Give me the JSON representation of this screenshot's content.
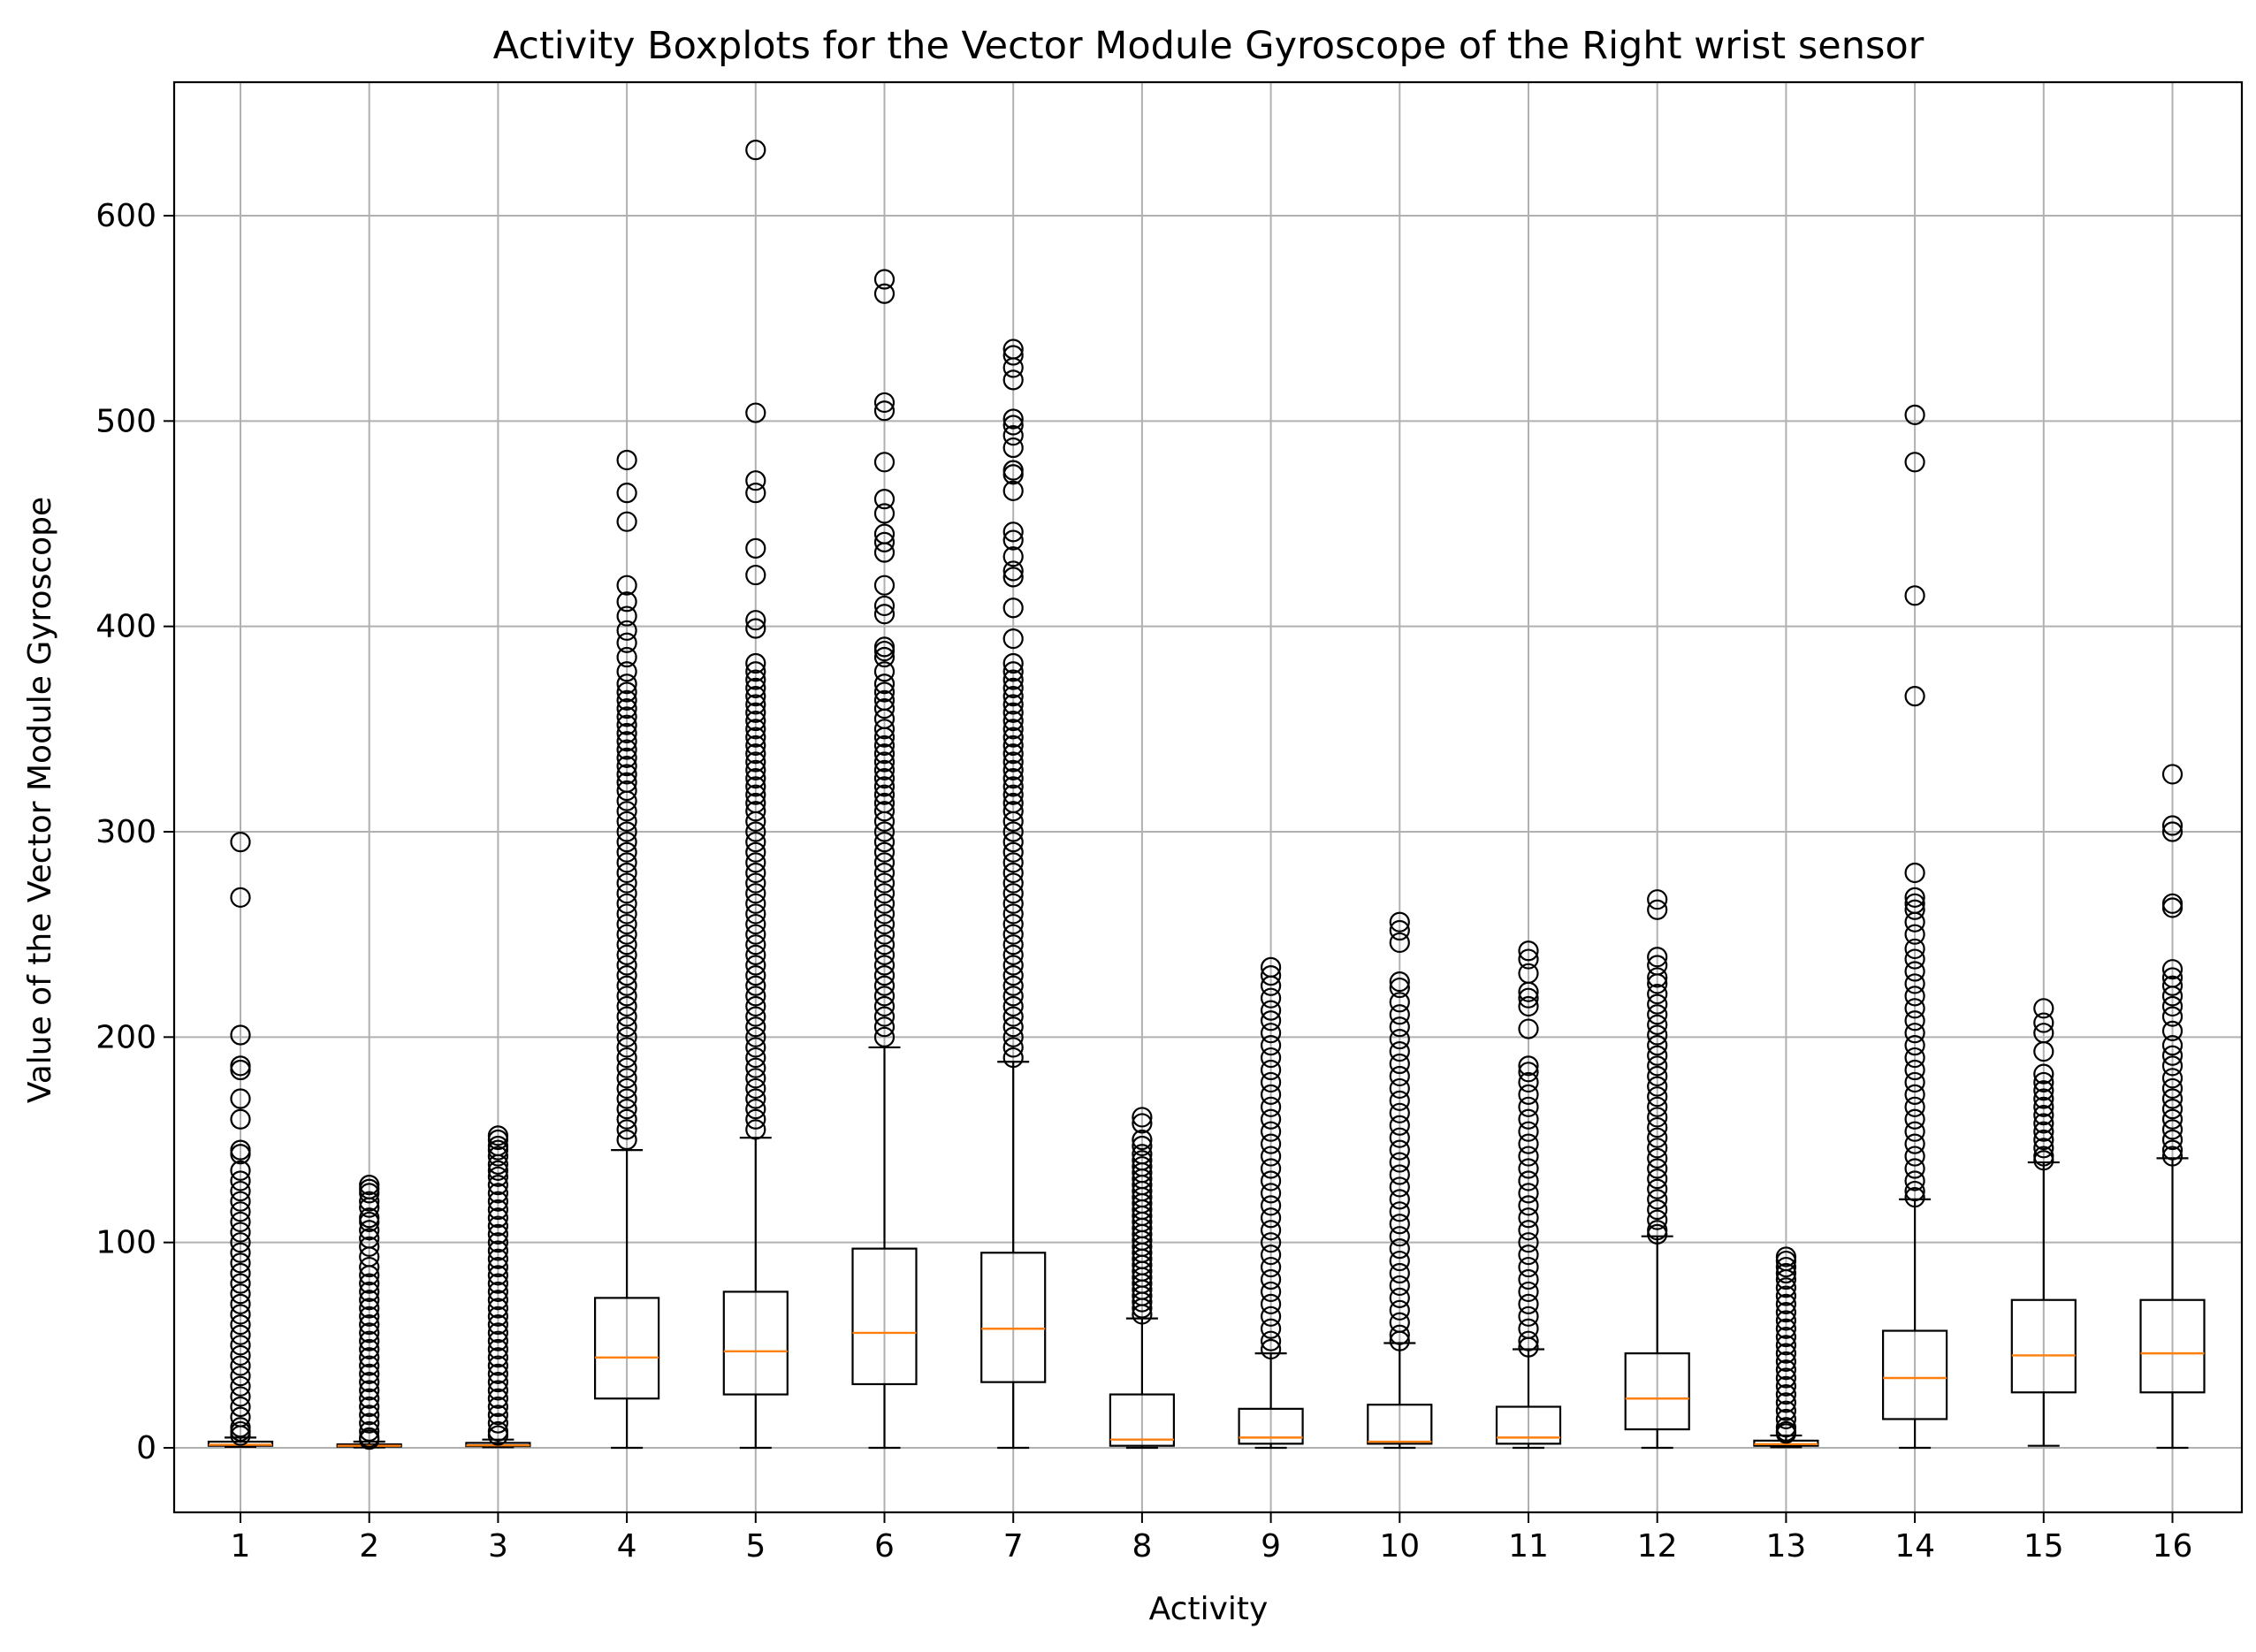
{
  "chart_data": {
    "type": "boxplot",
    "title": "Activity Boxplots for the Vector Module Gyroscope of the Right wrist sensor",
    "xlabel": "Activity",
    "ylabel": "Value of the Vector Module Gyroscope",
    "ylim": [
      -30,
      665
    ],
    "yticks": [
      0,
      100,
      200,
      300,
      400,
      500,
      600
    ],
    "grid": true,
    "colors": {
      "box": "#000000",
      "median": "#ff7f0e",
      "grid": "#b0b0b0",
      "flier": "#000000"
    },
    "categories": [
      "1",
      "2",
      "3",
      "4",
      "5",
      "6",
      "7",
      "8",
      "9",
      "10",
      "11",
      "12",
      "13",
      "14",
      "15",
      "16"
    ],
    "boxes": [
      {
        "label": "1",
        "whislo": 0.5,
        "q1": 1.0,
        "med": 1.5,
        "q3": 3.0,
        "whishi": 5,
        "fliers": [
          295,
          268,
          201,
          186,
          184,
          170,
          160,
          145,
          143,
          135,
          130,
          125,
          120,
          115,
          110,
          105,
          100,
          95,
          90,
          85,
          80,
          75,
          70,
          65,
          60,
          55,
          50,
          45,
          40,
          35,
          30,
          25,
          20,
          15,
          10,
          8,
          6
        ]
      },
      {
        "label": "2",
        "whislo": 0.2,
        "q1": 0.6,
        "med": 1.0,
        "q3": 1.7,
        "whishi": 3,
        "fliers": [
          128,
          126,
          124,
          120,
          117,
          112,
          110,
          106,
          102,
          98,
          93,
          88,
          84,
          80,
          76,
          72,
          68,
          64,
          60,
          56,
          52,
          48,
          44,
          40,
          36,
          32,
          28,
          24,
          20,
          16,
          12,
          8,
          5,
          4
        ]
      },
      {
        "label": "3",
        "whislo": 0.3,
        "q1": 0.8,
        "med": 1.2,
        "q3": 2.4,
        "whishi": 4,
        "fliers": [
          152,
          150,
          147,
          145,
          142,
          138,
          135,
          132,
          128,
          124,
          120,
          116,
          112,
          108,
          104,
          100,
          96,
          92,
          88,
          84,
          80,
          76,
          72,
          68,
          64,
          60,
          56,
          52,
          48,
          44,
          40,
          36,
          32,
          28,
          24,
          20,
          16,
          12,
          8,
          6
        ]
      },
      {
        "label": "4",
        "whislo": 0,
        "q1": 24,
        "med": 44,
        "q3": 73,
        "whishi": 145,
        "fliers": [
          481,
          465,
          451,
          420,
          412,
          405,
          398,
          392,
          385,
          378,
          372,
          368,
          364,
          360,
          356,
          352,
          348,
          344,
          340,
          336,
          332,
          328,
          324,
          320,
          315,
          310,
          305,
          300,
          295,
          290,
          285,
          280,
          275,
          270,
          265,
          260,
          255,
          250,
          245,
          240,
          235,
          230,
          225,
          220,
          215,
          210,
          205,
          200,
          195,
          190,
          185,
          180,
          175,
          170,
          165,
          160,
          155,
          150
        ]
      },
      {
        "label": "5",
        "whislo": 0,
        "q1": 26,
        "med": 47,
        "q3": 76,
        "whishi": 151,
        "fliers": [
          632,
          504,
          471,
          465,
          438,
          425,
          403,
          399,
          382,
          378,
          374,
          370,
          366,
          362,
          358,
          354,
          350,
          346,
          342,
          338,
          334,
          330,
          326,
          322,
          318,
          314,
          310,
          305,
          300,
          295,
          290,
          285,
          280,
          275,
          270,
          265,
          260,
          255,
          250,
          245,
          240,
          235,
          230,
          225,
          220,
          215,
          210,
          205,
          200,
          195,
          190,
          185,
          180,
          175,
          170,
          165,
          160,
          155
        ]
      },
      {
        "label": "6",
        "whislo": 0,
        "q1": 31,
        "med": 56,
        "q3": 97,
        "whishi": 195,
        "fliers": [
          569,
          562,
          509,
          505,
          480,
          462,
          455,
          445,
          441,
          436,
          420,
          410,
          406,
          390,
          388,
          385,
          378,
          372,
          368,
          364,
          360,
          355,
          350,
          346,
          342,
          338,
          334,
          330,
          326,
          322,
          318,
          314,
          310,
          305,
          300,
          295,
          290,
          285,
          280,
          275,
          270,
          265,
          260,
          255,
          250,
          245,
          240,
          235,
          230,
          225,
          220,
          215,
          210,
          205,
          200
        ]
      },
      {
        "label": "7",
        "whislo": 0,
        "q1": 32,
        "med": 58,
        "q3": 95,
        "whishi": 188,
        "fliers": [
          535,
          532,
          526,
          520,
          501,
          498,
          493,
          487,
          476,
          474,
          466,
          446,
          442,
          434,
          427,
          424,
          409,
          394,
          382,
          378,
          374,
          370,
          366,
          362,
          358,
          354,
          350,
          346,
          342,
          338,
          334,
          330,
          326,
          322,
          318,
          314,
          310,
          305,
          300,
          295,
          290,
          285,
          280,
          275,
          270,
          265,
          260,
          255,
          250,
          245,
          240,
          235,
          230,
          225,
          220,
          215,
          210,
          205,
          200,
          195,
          190
        ]
      },
      {
        "label": "8",
        "whislo": 0,
        "q1": 1,
        "med": 4,
        "q3": 26,
        "whishi": 63,
        "fliers": [
          161,
          158,
          150,
          147,
          143,
          140,
          137,
          134,
          131,
          128,
          125,
          122,
          119,
          116,
          113,
          110,
          107,
          104,
          101,
          98,
          95,
          92,
          89,
          86,
          83,
          80,
          77,
          74,
          71,
          68,
          65
        ]
      },
      {
        "label": "9",
        "whislo": 0,
        "q1": 2,
        "med": 5,
        "q3": 19,
        "whishi": 46,
        "fliers": [
          234,
          230,
          225,
          219,
          213,
          208,
          202,
          196,
          190,
          184,
          178,
          172,
          166,
          160,
          154,
          148,
          142,
          136,
          130,
          124,
          118,
          112,
          106,
          100,
          94,
          88,
          82,
          76,
          70,
          64,
          58,
          52,
          48
        ]
      },
      {
        "label": "10",
        "whislo": 0,
        "q1": 2,
        "med": 3,
        "q3": 21,
        "whishi": 51,
        "fliers": [
          256,
          252,
          246,
          227,
          224,
          217,
          211,
          205,
          199,
          193,
          187,
          181,
          175,
          169,
          163,
          157,
          151,
          145,
          139,
          133,
          127,
          121,
          115,
          109,
          103,
          97,
          91,
          85,
          79,
          73,
          67,
          61,
          55,
          52
        ]
      },
      {
        "label": "11",
        "whislo": 0,
        "q1": 2,
        "med": 5,
        "q3": 20,
        "whishi": 48,
        "fliers": [
          242,
          238,
          231,
          222,
          219,
          215,
          204,
          186,
          183,
          178,
          172,
          166,
          160,
          154,
          148,
          142,
          136,
          130,
          124,
          118,
          112,
          106,
          100,
          94,
          88,
          82,
          76,
          70,
          64,
          58,
          52,
          49
        ]
      },
      {
        "label": "12",
        "whislo": 0,
        "q1": 9,
        "med": 24,
        "q3": 46,
        "whishi": 103,
        "fliers": [
          267,
          262,
          239,
          235,
          229,
          226,
          221,
          216,
          211,
          206,
          201,
          196,
          191,
          186,
          181,
          176,
          171,
          166,
          161,
          156,
          151,
          146,
          141,
          136,
          131,
          126,
          121,
          116,
          111,
          106,
          104
        ]
      },
      {
        "label": "13",
        "whislo": 0.3,
        "q1": 1.0,
        "med": 1.8,
        "q3": 3.5,
        "whishi": 6,
        "fliers": [
          93,
          91,
          88,
          85,
          82,
          78,
          74,
          70,
          66,
          62,
          58,
          54,
          50,
          46,
          42,
          38,
          34,
          30,
          26,
          22,
          18,
          14,
          10,
          8,
          7
        ]
      },
      {
        "label": "14",
        "whislo": 0,
        "q1": 14,
        "med": 34,
        "q3": 57,
        "whishi": 121,
        "fliers": [
          503,
          480,
          415,
          366,
          280,
          268,
          265,
          262,
          256,
          250,
          243,
          238,
          232,
          226,
          220,
          214,
          208,
          202,
          196,
          190,
          184,
          178,
          172,
          166,
          160,
          154,
          148,
          142,
          136,
          130,
          125,
          122
        ]
      },
      {
        "label": "15",
        "whislo": 1,
        "q1": 27,
        "med": 45,
        "q3": 72,
        "whishi": 139,
        "fliers": [
          214,
          207,
          202,
          193,
          182,
          178,
          174,
          170,
          166,
          162,
          158,
          154,
          150,
          146,
          142,
          140
        ]
      },
      {
        "label": "16",
        "whislo": 0,
        "q1": 27,
        "med": 46,
        "q3": 72,
        "whishi": 141,
        "fliers": [
          328,
          303,
          300,
          265,
          263,
          233,
          229,
          225,
          220,
          215,
          210,
          203,
          196,
          191,
          186,
          180,
          175,
          170,
          165,
          160,
          155,
          150,
          145,
          142
        ]
      }
    ]
  }
}
